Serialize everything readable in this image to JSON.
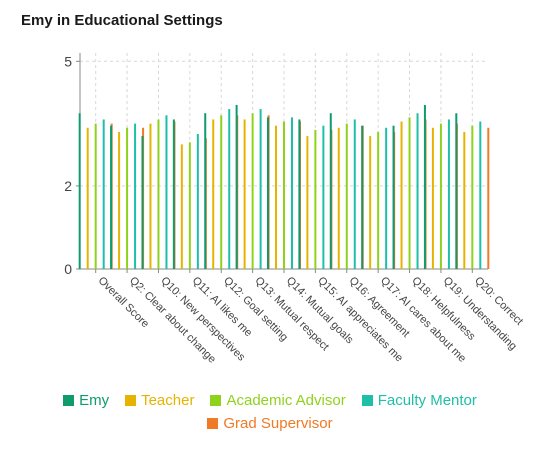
{
  "chart_data": {
    "type": "bar",
    "title": "Emy in Educational Settings",
    "ylim": [
      0,
      5.2
    ],
    "yticks": [
      0,
      2,
      5
    ],
    "grid": true,
    "legend_position": "bottom",
    "categories": [
      "Overall Score",
      "Q2: Clear about change",
      "Q10: New perspectives",
      "Q11: AI likes me",
      "Q12: Goal setting",
      "Q13: Mutual respect",
      "Q14: Mutual goals",
      "Q15: AI appreciates me",
      "Q16: Agreement",
      "Q17: AI cares about me",
      "Q18: Helpfulness",
      "Q19: Understanding",
      "Q20: Correct"
    ],
    "series": [
      {
        "name": "Emy",
        "color": "#0f9b6e",
        "values": [
          3.75,
          3.45,
          3.2,
          3.6,
          3.75,
          3.95,
          3.65,
          3.6,
          3.75,
          3.45,
          3.45,
          3.95,
          3.75
        ]
      },
      {
        "name": "Teacher",
        "color": "#e6b400",
        "values": [
          3.4,
          3.3,
          3.5,
          3.0,
          3.6,
          3.6,
          3.45,
          3.2,
          3.4,
          3.2,
          3.55,
          3.4,
          3.3
        ]
      },
      {
        "name": "Academic Advisor",
        "color": "#8fd21c",
        "values": [
          3.5,
          3.4,
          3.6,
          3.05,
          3.7,
          3.75,
          3.55,
          3.35,
          3.5,
          3.3,
          3.65,
          3.5,
          3.45
        ]
      },
      {
        "name": "Faculty Mentor",
        "color": "#1ebfa8",
        "values": [
          3.6,
          3.5,
          3.7,
          3.25,
          3.85,
          3.85,
          3.65,
          3.45,
          3.6,
          3.4,
          3.75,
          3.6,
          3.55
        ]
      },
      {
        "name": "Grad Supervisor",
        "color": "#f07a25",
        "values": [
          3.5,
          3.4,
          3.55,
          3.15,
          3.7,
          3.7,
          3.55,
          3.35,
          3.45,
          3.3,
          3.6,
          3.5,
          3.4
        ]
      }
    ]
  }
}
